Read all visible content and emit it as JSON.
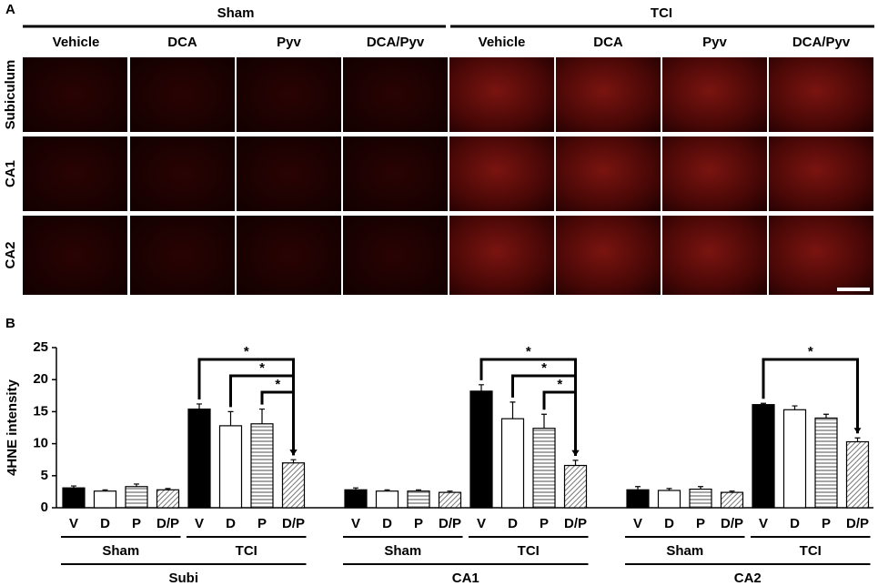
{
  "panel_a": {
    "label": "A",
    "groups": [
      {
        "name": "Sham",
        "columns": [
          "Vehicle",
          "DCA",
          "Pyv",
          "DCA/Pyv"
        ]
      },
      {
        "name": "TCI",
        "columns": [
          "Vehicle",
          "DCA",
          "Pyv",
          "DCA/Pyv"
        ]
      }
    ],
    "rows": [
      "Subiculum",
      "CA1",
      "CA2"
    ]
  },
  "chart_data": {
    "type": "bar",
    "panel_label": "B",
    "y_label": "4HNE intensity",
    "ylim": [
      0,
      25
    ],
    "yticks": [
      0,
      5,
      10,
      15,
      20,
      25
    ],
    "regions": [
      {
        "name": "Subi",
        "conditions": [
          {
            "name": "Sham",
            "categories": [
              "V",
              "D",
              "P",
              "D/P"
            ],
            "values": [
              3.1,
              2.6,
              3.3,
              2.8
            ],
            "errors": [
              0.3,
              0.2,
              0.4,
              0.2
            ]
          },
          {
            "name": "TCI",
            "categories": [
              "V",
              "D",
              "P",
              "D/P"
            ],
            "values": [
              15.4,
              12.8,
              13.1,
              7.0
            ],
            "errors": [
              0.8,
              2.2,
              2.3,
              0.5
            ],
            "significance": [
              {
                "from": "V",
                "to": "D/P",
                "label": "*"
              },
              {
                "from": "D",
                "to": "D/P",
                "label": "*"
              },
              {
                "from": "P",
                "to": "D/P",
                "label": "*"
              }
            ]
          }
        ]
      },
      {
        "name": "CA1",
        "conditions": [
          {
            "name": "Sham",
            "categories": [
              "V",
              "D",
              "P",
              "D/P"
            ],
            "values": [
              2.8,
              2.6,
              2.6,
              2.4
            ],
            "errors": [
              0.3,
              0.2,
              0.2,
              0.2
            ]
          },
          {
            "name": "TCI",
            "categories": [
              "V",
              "D",
              "P",
              "D/P"
            ],
            "values": [
              18.2,
              13.9,
              12.4,
              6.6
            ],
            "errors": [
              1.0,
              2.6,
              2.2,
              0.8
            ],
            "significance": [
              {
                "from": "V",
                "to": "D/P",
                "label": "*"
              },
              {
                "from": "D",
                "to": "D/P",
                "label": "*"
              },
              {
                "from": "P",
                "to": "D/P",
                "label": "*"
              }
            ]
          }
        ]
      },
      {
        "name": "CA2",
        "conditions": [
          {
            "name": "Sham",
            "categories": [
              "V",
              "D",
              "P",
              "D/P"
            ],
            "values": [
              2.8,
              2.7,
              2.9,
              2.4
            ],
            "errors": [
              0.5,
              0.3,
              0.4,
              0.2
            ]
          },
          {
            "name": "TCI",
            "categories": [
              "V",
              "D",
              "P",
              "D/P"
            ],
            "values": [
              16.1,
              15.3,
              14.0,
              10.3
            ],
            "errors": [
              0.2,
              0.6,
              0.6,
              0.6
            ],
            "significance": [
              {
                "from": "V",
                "to": "D/P",
                "label": "*"
              }
            ]
          }
        ]
      }
    ]
  }
}
